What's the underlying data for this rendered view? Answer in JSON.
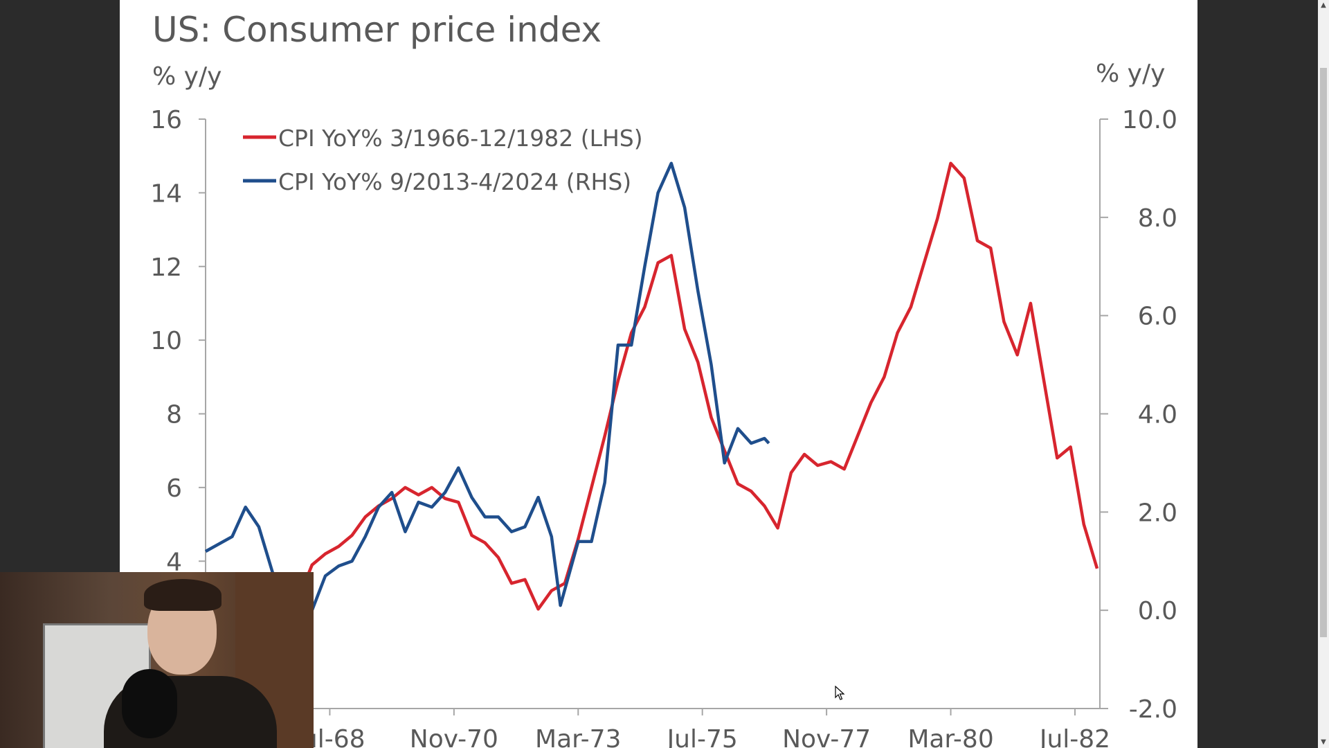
{
  "title": "US: Consumer price index",
  "left_unit": "% y/y",
  "right_unit": "% y/y",
  "colors": {
    "lhs_series": "#d7252e",
    "rhs_series": "#1f4e8c",
    "axis": "#a6a6a6",
    "text": "#595959"
  },
  "chart_data": {
    "type": "line",
    "title": "US: Consumer price index",
    "left_axis": {
      "label": "% y/y",
      "ylim": [
        0,
        16
      ],
      "ticks": [
        "16",
        "14",
        "12",
        "10",
        "8",
        "6",
        "4"
      ]
    },
    "right_axis": {
      "label": "% y/y",
      "ylim": [
        -2,
        10
      ],
      "ticks": [
        "10.0",
        "8.0",
        "6.0",
        "4.0",
        "2.0",
        "0.0",
        "-2.0"
      ]
    },
    "x_axis": {
      "range": [
        "1966-03",
        "1982-12"
      ],
      "ticks": [
        "Jul-68",
        "Nov-70",
        "Mar-73",
        "Jul-75",
        "Nov-77",
        "Mar-80",
        "Jul-82"
      ]
    },
    "legend_position": "top-left",
    "grid": false,
    "series": [
      {
        "name": "CPI YoY% 3/1966-12/1982 (LHS)",
        "axis": "left",
        "points": [
          [
            "1966-03",
            2.5
          ],
          [
            "1966-06",
            2.8
          ],
          [
            "1966-09",
            3.5
          ],
          [
            "1966-12",
            3.3
          ],
          [
            "1967-03",
            2.8
          ],
          [
            "1967-06",
            2.7
          ],
          [
            "1967-09",
            2.8
          ],
          [
            "1967-12",
            3.0
          ],
          [
            "1968-03",
            3.9
          ],
          [
            "1968-06",
            4.2
          ],
          [
            "1968-09",
            4.4
          ],
          [
            "1968-12",
            4.7
          ],
          [
            "1969-03",
            5.2
          ],
          [
            "1969-06",
            5.5
          ],
          [
            "1969-09",
            5.7
          ],
          [
            "1969-12",
            6.0
          ],
          [
            "1970-03",
            5.8
          ],
          [
            "1970-06",
            6.0
          ],
          [
            "1970-09",
            5.7
          ],
          [
            "1970-12",
            5.6
          ],
          [
            "1971-03",
            4.7
          ],
          [
            "1971-06",
            4.5
          ],
          [
            "1971-09",
            4.1
          ],
          [
            "1971-12",
            3.4
          ],
          [
            "1972-03",
            3.5
          ],
          [
            "1972-06",
            2.7
          ],
          [
            "1972-09",
            3.2
          ],
          [
            "1972-12",
            3.4
          ],
          [
            "1973-03",
            4.6
          ],
          [
            "1973-06",
            6.0
          ],
          [
            "1973-09",
            7.4
          ],
          [
            "1973-12",
            8.9
          ],
          [
            "1974-03",
            10.2
          ],
          [
            "1974-06",
            10.9
          ],
          [
            "1974-09",
            12.1
          ],
          [
            "1974-12",
            12.3
          ],
          [
            "1975-03",
            10.3
          ],
          [
            "1975-06",
            9.4
          ],
          [
            "1975-09",
            7.9
          ],
          [
            "1975-12",
            7.0
          ],
          [
            "1976-03",
            6.1
          ],
          [
            "1976-06",
            5.9
          ],
          [
            "1976-09",
            5.5
          ],
          [
            "1976-12",
            4.9
          ],
          [
            "1977-03",
            6.4
          ],
          [
            "1977-06",
            6.9
          ],
          [
            "1977-09",
            6.6
          ],
          [
            "1977-12",
            6.7
          ],
          [
            "1978-03",
            6.5
          ],
          [
            "1978-06",
            7.4
          ],
          [
            "1978-09",
            8.3
          ],
          [
            "1978-12",
            9.0
          ],
          [
            "1979-03",
            10.2
          ],
          [
            "1979-06",
            10.9
          ],
          [
            "1979-09",
            12.1
          ],
          [
            "1979-12",
            13.3
          ],
          [
            "1980-03",
            14.8
          ],
          [
            "1980-06",
            14.4
          ],
          [
            "1980-09",
            12.7
          ],
          [
            "1980-12",
            12.5
          ],
          [
            "1981-03",
            10.5
          ],
          [
            "1981-06",
            9.6
          ],
          [
            "1981-09",
            11.0
          ],
          [
            "1981-12",
            8.9
          ],
          [
            "1982-03",
            6.8
          ],
          [
            "1982-06",
            7.1
          ],
          [
            "1982-09",
            5.0
          ],
          [
            "1982-12",
            3.8
          ]
        ]
      },
      {
        "name": "CPI YoY% 9/2013-4/2024 (RHS)",
        "axis": "right",
        "points": [
          [
            "2013-09",
            1.2
          ],
          [
            "2014-03",
            1.5
          ],
          [
            "2014-06",
            2.1
          ],
          [
            "2014-09",
            1.7
          ],
          [
            "2014-12",
            0.8
          ],
          [
            "2015-03",
            -0.1
          ],
          [
            "2015-06",
            0.1
          ],
          [
            "2015-09",
            0.0
          ],
          [
            "2015-12",
            0.7
          ],
          [
            "2016-03",
            0.9
          ],
          [
            "2016-06",
            1.0
          ],
          [
            "2016-09",
            1.5
          ],
          [
            "2016-12",
            2.1
          ],
          [
            "2017-03",
            2.4
          ],
          [
            "2017-06",
            1.6
          ],
          [
            "2017-09",
            2.2
          ],
          [
            "2017-12",
            2.1
          ],
          [
            "2018-03",
            2.4
          ],
          [
            "2018-06",
            2.9
          ],
          [
            "2018-09",
            2.3
          ],
          [
            "2018-12",
            1.9
          ],
          [
            "2019-03",
            1.9
          ],
          [
            "2019-06",
            1.6
          ],
          [
            "2019-09",
            1.7
          ],
          [
            "2019-12",
            2.3
          ],
          [
            "2020-03",
            1.5
          ],
          [
            "2020-05",
            0.1
          ],
          [
            "2020-09",
            1.4
          ],
          [
            "2020-12",
            1.4
          ],
          [
            "2021-03",
            2.6
          ],
          [
            "2021-06",
            5.4
          ],
          [
            "2021-09",
            5.4
          ],
          [
            "2021-12",
            7.0
          ],
          [
            "2022-03",
            8.5
          ],
          [
            "2022-06",
            9.1
          ],
          [
            "2022-09",
            8.2
          ],
          [
            "2022-12",
            6.5
          ],
          [
            "2023-03",
            5.0
          ],
          [
            "2023-06",
            3.0
          ],
          [
            "2023-09",
            3.7
          ],
          [
            "2023-12",
            3.4
          ],
          [
            "2024-03",
            3.5
          ],
          [
            "2024-04",
            3.4
          ]
        ]
      }
    ]
  },
  "webcam": {
    "label": "webcam overlay"
  }
}
